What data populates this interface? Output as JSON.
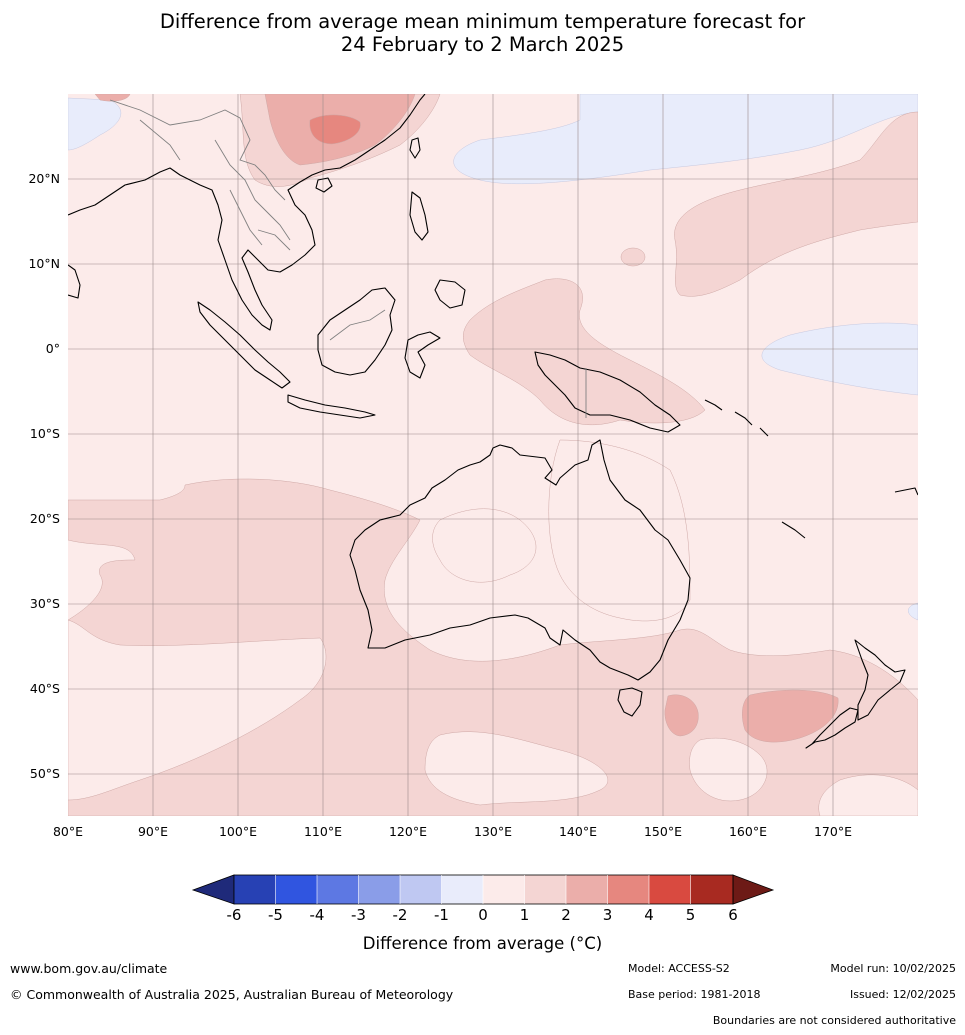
{
  "title": {
    "line1": "Difference from average mean minimum temperature forecast for",
    "line2": "24 February to 2 March 2025"
  },
  "map": {
    "lat_labels": [
      "20°N",
      "10°N",
      "0°",
      "10°S",
      "20°S",
      "30°S",
      "40°S",
      "50°S"
    ],
    "lon_labels": [
      "80°E",
      "90°E",
      "100°E",
      "110°E",
      "120°E",
      "130°E",
      "140°E",
      "150°E",
      "160°E",
      "170°E"
    ],
    "colors": {
      "ocean_base": "#fcebea",
      "warm1": "#f4d5d3",
      "warm2": "#ebaeaa",
      "warm3": "#e6877f",
      "cool1": "#e8ecfb",
      "grid": "#9a8a8a",
      "coast": "#000000",
      "border": "#808080"
    }
  },
  "colorbar": {
    "ticks": [
      "-6",
      "-5",
      "-4",
      "-3",
      "-2",
      "-1",
      "0",
      "1",
      "2",
      "3",
      "4",
      "5",
      "6"
    ],
    "colors": [
      "#1f2a7a",
      "#2741b4",
      "#3055e0",
      "#5d78e3",
      "#8a9de8",
      "#bfc8f2",
      "#e9ecfb",
      "#fcebea",
      "#f4d5d3",
      "#ebaeaa",
      "#e6877f",
      "#d94a40",
      "#a82a21",
      "#6d1a16"
    ],
    "label": "Difference from average (°C)"
  },
  "footer": {
    "website": "www.bom.gov.au/climate",
    "copyright": "© Commonwealth of Australia 2025, Australian Bureau of Meteorology",
    "model": "Model: ACCESS-S2",
    "base_period": "Base period: 1981-2018",
    "model_run": "Model run: 10/02/2025",
    "issued": "Issued: 12/02/2025",
    "disclaimer": "Boundaries are not considered authoritative"
  }
}
